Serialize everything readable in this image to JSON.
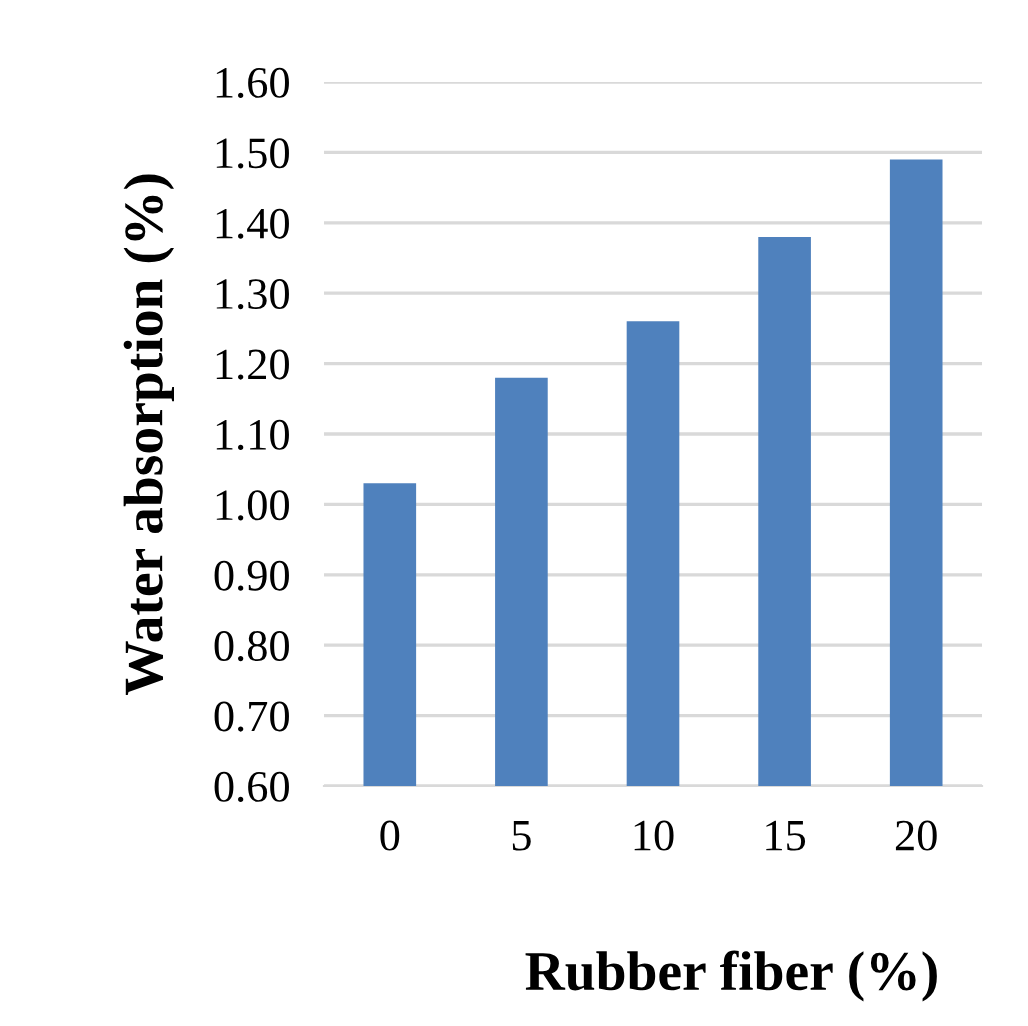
{
  "chart_data": {
    "type": "bar",
    "xlabel": "Rubber fiber (%)",
    "ylabel": "Water absorption (%)",
    "categories": [
      "0",
      "5",
      "10",
      "15",
      "20"
    ],
    "values": [
      1.03,
      1.18,
      1.26,
      1.38,
      1.49
    ],
    "color": "#4f81bd",
    "ylim": [
      0.6,
      1.6
    ],
    "yticks": [
      {
        "value": 0.6,
        "label": "0.60"
      },
      {
        "value": 0.7,
        "label": "0.70"
      },
      {
        "value": 0.8,
        "label": "0.80"
      },
      {
        "value": 0.9,
        "label": "0.90"
      },
      {
        "value": 1.0,
        "label": "1.00"
      },
      {
        "value": 1.1,
        "label": "1.10"
      },
      {
        "value": 1.2,
        "label": "1.20"
      },
      {
        "value": 1.3,
        "label": "1.30"
      },
      {
        "value": 1.4,
        "label": "1.40"
      },
      {
        "value": 1.5,
        "label": "1.50"
      },
      {
        "value": 1.6,
        "label": "1.60"
      }
    ],
    "grid": "y"
  }
}
